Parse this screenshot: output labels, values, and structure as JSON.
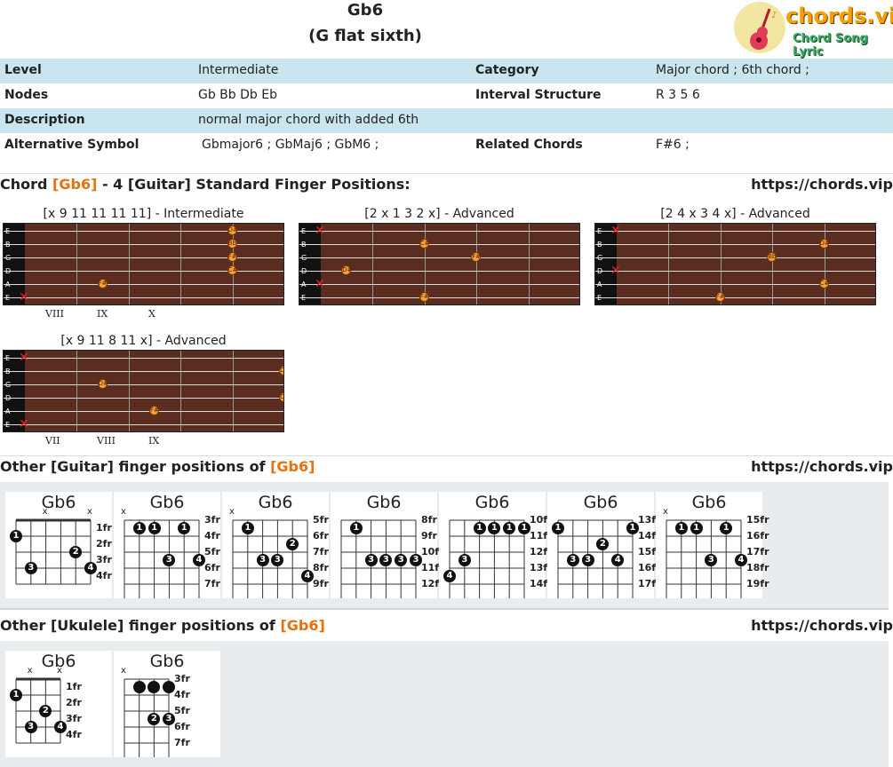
{
  "header": {
    "title": "Gb6",
    "subtitle": "(G flat sixth)",
    "logo_brand": "chords.vip",
    "logo_tagline": "Chord Song Lyric"
  },
  "info": [
    {
      "k1": "Level",
      "v1": "Intermediate",
      "k2": "Category",
      "v2": "Major chord ; 6th chord ;"
    },
    {
      "k1": "Nodes",
      "v1": "Gb Bb Db Eb",
      "k2": "Interval Structure",
      "v2": "R 3 5 6"
    },
    {
      "k1": "Description",
      "v1": "normal major chord with added 6th",
      "k2": "",
      "v2": ""
    },
    {
      "k1": "Alternative Symbol",
      "v1": "Gbmajor6 ; GbMaj6 ; GbM6 ;",
      "k2": "Related Chords",
      "v2": "F#6 ;"
    }
  ],
  "section1": {
    "prefix": "Chord ",
    "chord": "[Gb6]",
    "suffix": " - 4 [Guitar] Standard Finger Positions:",
    "url": "https://chords.vip"
  },
  "string_names": [
    "E",
    "B",
    "G",
    "D",
    "A",
    "E"
  ],
  "positions": [
    {
      "label": "[x 9 11 11 11 11] - Intermediate",
      "romans": [
        "VIII",
        "IX",
        "X"
      ],
      "notes": [
        {
          "s": 0,
          "f": 8,
          "n": "D#"
        },
        {
          "s": 1,
          "f": 8,
          "n": "Bb"
        },
        {
          "s": 2,
          "f": 8,
          "n": "F#"
        },
        {
          "s": 3,
          "f": 8,
          "n": "C#"
        },
        {
          "s": 4,
          "f": 3,
          "n": "F#"
        }
      ],
      "mutes": [
        5
      ]
    },
    {
      "label": "[2 x 1 3 2 x] - Advanced",
      "romans": [],
      "notes": [
        {
          "s": 1,
          "f": 4,
          "n": "C#"
        },
        {
          "s": 2,
          "f": 6,
          "n": "F#"
        },
        {
          "s": 3,
          "f": 1,
          "n": "D#"
        },
        {
          "s": 5,
          "f": 4,
          "n": "F#"
        }
      ],
      "mutes": [
        0,
        4
      ]
    },
    {
      "label": "[2 4 x 3 4 x] - Advanced",
      "romans": [],
      "notes": [
        {
          "s": 1,
          "f": 8,
          "n": "D#"
        },
        {
          "s": 2,
          "f": 6,
          "n": "Bb"
        },
        {
          "s": 4,
          "f": 8,
          "n": "C#"
        },
        {
          "s": 5,
          "f": 4,
          "n": "F#"
        }
      ],
      "mutes": [
        0,
        3
      ]
    },
    {
      "label": "[x 9 11 8 11 x] - Advanced",
      "romans": [
        "VII",
        "VIII",
        "IX"
      ],
      "notes": [
        {
          "s": 1,
          "f": 10,
          "n": "D#"
        },
        {
          "s": 2,
          "f": 3,
          "n": "D#"
        },
        {
          "s": 3,
          "f": 10,
          "n": "C#"
        },
        {
          "s": 4,
          "f": 5,
          "n": "F#"
        }
      ],
      "mutes": [
        0,
        5
      ]
    }
  ],
  "section2": {
    "prefix": "Other [Guitar] finger positions of ",
    "chord": "[Gb6]",
    "url": "https://chords.vip"
  },
  "guitar_cards": [
    {
      "name": "Gb6",
      "frets": [
        "1fr",
        "2fr",
        "3fr",
        "4fr"
      ],
      "nut": true,
      "marks": [
        {
          "s": 2,
          "t": "x"
        },
        {
          "s": 5,
          "t": "x"
        }
      ],
      "dots": [
        {
          "s": 0,
          "r": 1,
          "t": "1"
        },
        {
          "s": 4,
          "r": 2,
          "t": "2"
        },
        {
          "s": 1,
          "r": 3,
          "t": "3"
        },
        {
          "s": 5,
          "r": 3,
          "t": "4"
        }
      ]
    },
    {
      "name": "Gb6",
      "frets": [
        "3fr",
        "4fr",
        "5fr",
        "6fr",
        "7fr"
      ],
      "nut": false,
      "marks": [
        {
          "s": 0,
          "t": "x"
        }
      ],
      "dots": [
        {
          "s": 1,
          "r": 0.5,
          "t": "1"
        },
        {
          "s": 2,
          "r": 0.5,
          "t": "1"
        },
        {
          "s": 4,
          "r": 0.5,
          "t": "1"
        },
        {
          "s": 3,
          "r": 2.5,
          "t": "3"
        },
        {
          "s": 5,
          "r": 2.5,
          "t": "4"
        }
      ]
    },
    {
      "name": "Gb6",
      "frets": [
        "5fr",
        "6fr",
        "7fr",
        "8fr",
        "9fr"
      ],
      "nut": false,
      "marks": [
        {
          "s": 0,
          "t": "x"
        }
      ],
      "dots": [
        {
          "s": 1,
          "r": 0.5,
          "t": "1"
        },
        {
          "s": 4,
          "r": 1.5,
          "t": "2"
        },
        {
          "s": 2,
          "r": 2.5,
          "t": "3"
        },
        {
          "s": 3,
          "r": 2.5,
          "t": "3"
        },
        {
          "s": 5,
          "r": 3.5,
          "t": "4"
        }
      ]
    },
    {
      "name": "Gb6",
      "frets": [
        "8fr",
        "9fr",
        "10fr",
        "11fr",
        "12fr"
      ],
      "nut": false,
      "marks": [],
      "dots": [
        {
          "s": 1,
          "r": 0.5,
          "t": "1"
        },
        {
          "s": 2,
          "r": 2.5,
          "t": "3"
        },
        {
          "s": 3,
          "r": 2.5,
          "t": "3"
        },
        {
          "s": 4,
          "r": 2.5,
          "t": "3"
        },
        {
          "s": 5,
          "r": 2.5,
          "t": "3"
        }
      ]
    },
    {
      "name": "Gb6",
      "frets": [
        "10fr",
        "11fr",
        "12fr",
        "13fr",
        "14fr"
      ],
      "nut": false,
      "marks": [],
      "dots": [
        {
          "s": 2,
          "r": 0.5,
          "t": "1"
        },
        {
          "s": 3,
          "r": 0.5,
          "t": "1"
        },
        {
          "s": 4,
          "r": 0.5,
          "t": "1"
        },
        {
          "s": 5,
          "r": 0.5,
          "t": "1"
        },
        {
          "s": 1,
          "r": 2.5,
          "t": "3"
        },
        {
          "s": 0,
          "r": 3.5,
          "t": "4"
        }
      ]
    },
    {
      "name": "Gb6",
      "frets": [
        "13fr",
        "14fr",
        "15fr",
        "16fr",
        "17fr"
      ],
      "nut": false,
      "marks": [],
      "dots": [
        {
          "s": 0,
          "r": 0.5,
          "t": "1"
        },
        {
          "s": 5,
          "r": 0.5,
          "t": "1"
        },
        {
          "s": 3,
          "r": 1.5,
          "t": "2"
        },
        {
          "s": 1,
          "r": 2.5,
          "t": "3"
        },
        {
          "s": 2,
          "r": 2.5,
          "t": "3"
        },
        {
          "s": 4,
          "r": 2.5,
          "t": "4"
        }
      ]
    },
    {
      "name": "Gb6",
      "frets": [
        "15fr",
        "16fr",
        "17fr",
        "18fr",
        "19fr"
      ],
      "nut": false,
      "marks": [
        {
          "s": 0,
          "t": "x"
        }
      ],
      "dots": [
        {
          "s": 1,
          "r": 0.5,
          "t": "1"
        },
        {
          "s": 2,
          "r": 0.5,
          "t": "1"
        },
        {
          "s": 4,
          "r": 0.5,
          "t": "1"
        },
        {
          "s": 3,
          "r": 2.5,
          "t": "3"
        },
        {
          "s": 5,
          "r": 2.5,
          "t": "4"
        }
      ]
    }
  ],
  "section3": {
    "prefix": "Other [Ukulele] finger positions of ",
    "chord": "[Gb6]",
    "url": "https://chords.vip"
  },
  "ukulele_cards": [
    {
      "name": "Gb6",
      "frets": [
        "1fr",
        "2fr",
        "3fr",
        "4fr"
      ],
      "nut": true,
      "marks": [
        {
          "s": 1,
          "t": "x"
        },
        {
          "s": 3,
          "t": "x"
        }
      ],
      "dots": [
        {
          "s": 0,
          "r": 1,
          "t": "1"
        },
        {
          "s": 2,
          "r": 2,
          "t": "2"
        },
        {
          "s": 1,
          "r": 3,
          "t": "3"
        },
        {
          "s": 3,
          "r": 3,
          "t": "4"
        }
      ]
    },
    {
      "name": "Gb6",
      "frets": [
        "3fr",
        "4fr",
        "5fr",
        "6fr",
        "7fr"
      ],
      "nut": false,
      "marks": [
        {
          "s": 0,
          "t": "x"
        }
      ],
      "dots": [
        {
          "s": 1,
          "r": 0.5,
          "t": ""
        },
        {
          "s": 2,
          "r": 0.5,
          "t": ""
        },
        {
          "s": 3,
          "r": 0.5,
          "t": ""
        },
        {
          "s": 2,
          "r": 2.5,
          "t": "2"
        },
        {
          "s": 3,
          "r": 2.5,
          "t": "3"
        }
      ]
    }
  ]
}
